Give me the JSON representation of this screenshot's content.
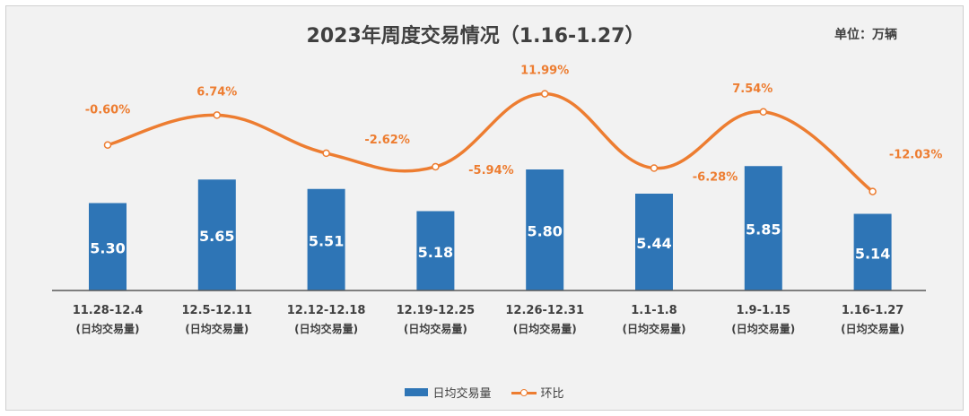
{
  "unit_label": "单位：万辆",
  "colors": {
    "bar": "#2e75b6",
    "line": "#ed7d31",
    "axis": "#595959",
    "text": "#404040"
  },
  "chart_data": {
    "type": "bar",
    "title": "2023年周度交易情况（1.16-1.27）",
    "categories": [
      [
        "11.28-12.4",
        "(日均交易量)"
      ],
      [
        "12.5-12.11",
        "(日均交易量)"
      ],
      [
        "12.12-12.18",
        "(日均交易量)"
      ],
      [
        "12.19-12.25",
        "(日均交易量)"
      ],
      [
        "12.26-12.31",
        "(日均交易量)"
      ],
      [
        "1.1-1.8",
        "(日均交易量)"
      ],
      [
        "1.9-1.15",
        "(日均交易量)"
      ],
      [
        "1.16-1.27",
        "(日均交易量)"
      ]
    ],
    "series": [
      {
        "name": "日均交易量",
        "type": "bar",
        "values": [
          5.3,
          5.65,
          5.51,
          5.18,
          5.8,
          5.44,
          5.85,
          5.14
        ],
        "labels": [
          "5.30",
          "5.65",
          "5.51",
          "5.18",
          "5.80",
          "5.44",
          "5.85",
          "5.14"
        ]
      },
      {
        "name": "环比",
        "type": "line",
        "smooth": true,
        "values": [
          -0.6,
          6.74,
          -2.62,
          -5.94,
          11.99,
          -6.28,
          7.54,
          -12.03
        ],
        "labels": [
          "-0.60%",
          "6.74%",
          "-2.62%",
          "-5.94%",
          "11.99%",
          "-6.28%",
          "7.54%",
          "-12.03%"
        ]
      }
    ],
    "legend": "bottom-center",
    "grid": false
  }
}
